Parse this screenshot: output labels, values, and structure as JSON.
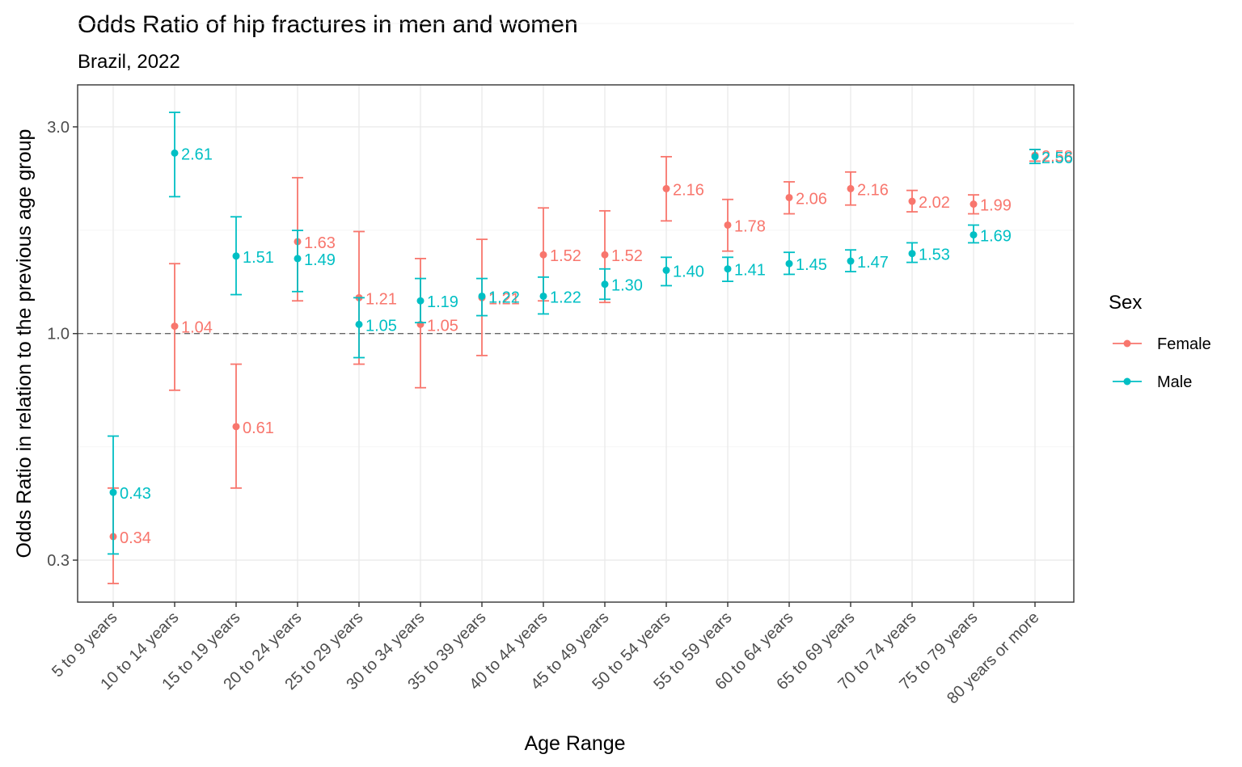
{
  "chart_data": {
    "type": "errorbar",
    "title": "Odds Ratio of hip fractures in men and women",
    "subtitle": "Brazil, 2022",
    "xlabel": "Age Range",
    "ylabel": "Odds Ratio in relation to the previous age group",
    "y_scale": "log",
    "ylim": [
      0.24,
      3.75
    ],
    "y_ticks": [
      0.3,
      1.0,
      3.0
    ],
    "y_tick_labels": [
      "0.3",
      "1.0",
      "3.0"
    ],
    "reference_line": 1.0,
    "grid": true,
    "legend": {
      "title": "Sex",
      "position": "right"
    },
    "categories": [
      "5 to 9 years",
      "10 to 14 years",
      "15 to 19 years",
      "20 to 24 years",
      "25 to 29 years",
      "30 to 34 years",
      "35 to 39 years",
      "40 to 44 years",
      "45 to 49 years",
      "50 to 54 years",
      "55 to 59 years",
      "60 to 64 years",
      "65 to 69 years",
      "70 to 74 years",
      "75 to 79 years",
      "80 years or more"
    ],
    "series": [
      {
        "name": "Female",
        "color": "#F8766D",
        "values": [
          0.34,
          1.04,
          0.61,
          1.63,
          1.21,
          1.05,
          1.21,
          1.52,
          1.52,
          2.16,
          1.78,
          2.06,
          2.16,
          2.02,
          1.99,
          2.58
        ],
        "lower": [
          0.265,
          0.74,
          0.44,
          1.19,
          0.85,
          0.75,
          0.89,
          1.19,
          1.18,
          1.82,
          1.55,
          1.89,
          1.98,
          1.91,
          1.89,
          2.5
        ],
        "upper": [
          0.44,
          1.45,
          0.85,
          2.29,
          1.72,
          1.49,
          1.65,
          1.95,
          1.92,
          2.56,
          2.04,
          2.24,
          2.36,
          2.14,
          2.09,
          2.66
        ],
        "labels": [
          "0.34",
          "1.04",
          "0.61",
          "1.63",
          "1.21",
          "1.05",
          "1.21",
          "1.52",
          "1.52",
          "2.16",
          "1.78",
          "2.06",
          "2.16",
          "2.02",
          "1.99",
          "2.58"
        ]
      },
      {
        "name": "Male",
        "color": "#00BFC4",
        "values": [
          0.43,
          2.61,
          1.51,
          1.49,
          1.05,
          1.19,
          1.22,
          1.22,
          1.3,
          1.4,
          1.41,
          1.45,
          1.47,
          1.53,
          1.69,
          2.56
        ],
        "lower": [
          0.31,
          2.07,
          1.23,
          1.25,
          0.88,
          1.06,
          1.1,
          1.11,
          1.2,
          1.29,
          1.32,
          1.37,
          1.39,
          1.46,
          1.62,
          2.47
        ],
        "upper": [
          0.58,
          3.24,
          1.86,
          1.73,
          1.21,
          1.34,
          1.34,
          1.35,
          1.41,
          1.5,
          1.5,
          1.54,
          1.56,
          1.62,
          1.78,
          2.66
        ],
        "labels": [
          "0.43",
          "2.61",
          "1.51",
          "1.49",
          "1.05",
          "1.19",
          "1.22",
          "1.22",
          "1.30",
          "1.40",
          "1.41",
          "1.45",
          "1.47",
          "1.53",
          "1.69",
          "2.56"
        ]
      }
    ]
  }
}
